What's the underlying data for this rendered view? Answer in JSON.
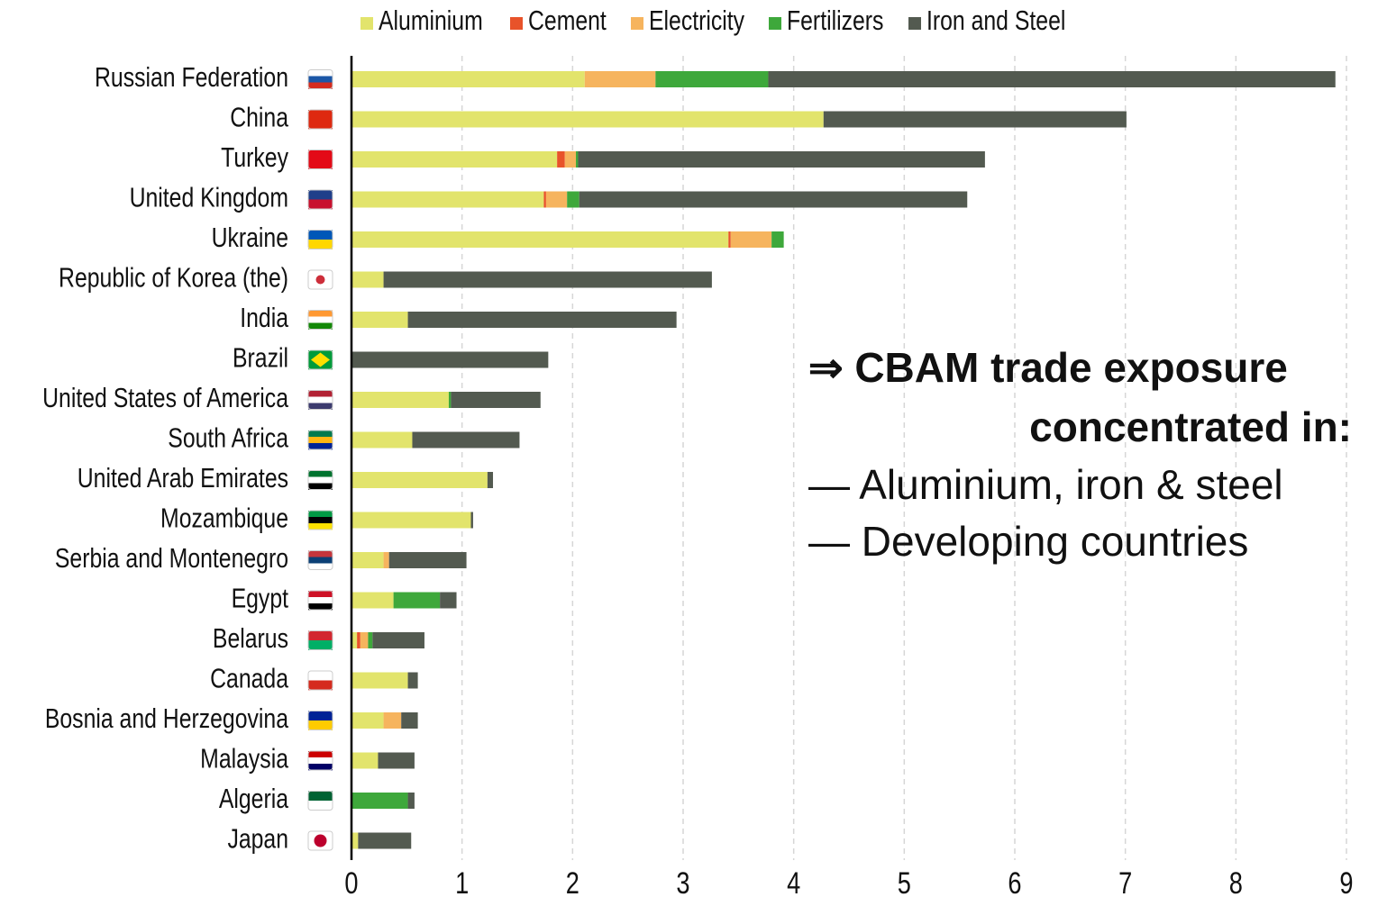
{
  "chart_data": {
    "type": "stacked-bar-horizontal",
    "categories": [
      "Russian Federation",
      "China",
      "Turkey",
      "United Kingdom",
      "Ukraine",
      "Republic of Korea (the)",
      "India",
      "Brazil",
      "United States of America",
      "South Africa",
      "United Arab Emirates",
      "Mozambique",
      "Serbia and Montenegro",
      "Egypt",
      "Belarus",
      "Canada",
      "Bosnia and Herzegovina",
      "Malaysia",
      "Algeria",
      "Japan"
    ],
    "series": [
      {
        "name": "Aluminium",
        "color": "#e2e46c",
        "values": [
          2.11,
          4.27,
          1.86,
          1.74,
          3.41,
          0.29,
          0.51,
          0,
          0.88,
          0.55,
          1.23,
          1.08,
          0.29,
          0.38,
          0.05,
          0.51,
          0.29,
          0.24,
          0,
          0.06
        ]
      },
      {
        "name": "Cement",
        "color": "#e8532a",
        "values": [
          0,
          0,
          0.07,
          0.02,
          0.02,
          0,
          0,
          0,
          0,
          0,
          0,
          0,
          0,
          0,
          0.03,
          0,
          0,
          0,
          0,
          0
        ]
      },
      {
        "name": "Electricity",
        "color": "#f6b45e",
        "values": [
          0.64,
          0,
          0.1,
          0.19,
          0.37,
          0,
          0,
          0,
          0,
          0,
          0,
          0,
          0.05,
          0,
          0.07,
          0,
          0.16,
          0,
          0,
          0
        ]
      },
      {
        "name": "Fertilizers",
        "color": "#3ea83b",
        "values": [
          1.02,
          0,
          0.02,
          0.11,
          0.11,
          0,
          0,
          0,
          0.02,
          0,
          0,
          0,
          0,
          0.42,
          0.04,
          0,
          0,
          0,
          0.51,
          0
        ]
      },
      {
        "name": "Iron and Steel",
        "color": "#535a50",
        "values": [
          5.13,
          2.74,
          3.68,
          3.51,
          0,
          2.97,
          2.43,
          1.78,
          0.81,
          0.97,
          0.05,
          0.02,
          0.7,
          0.15,
          0.47,
          0.09,
          0.15,
          0.33,
          0.06,
          0.48
        ]
      }
    ],
    "xlim": [
      0,
      9
    ],
    "xticks": [
      0,
      1,
      2,
      3,
      4,
      5,
      6,
      7,
      8,
      9
    ],
    "grid": true,
    "legend": "top",
    "annotations": [
      "⇒ CBAM trade exposure",
      "concentrated in:",
      "— Aluminium, iron & steel",
      "— Developing countries"
    ]
  }
}
